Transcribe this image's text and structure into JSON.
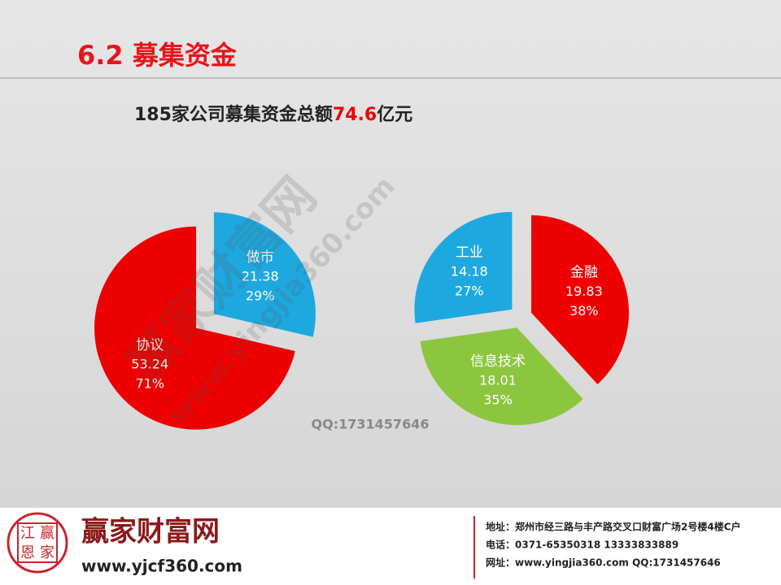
{
  "header": {
    "title": "6.2 募集资金",
    "subtitle_prefix": "185家公司募集资金总额",
    "subtitle_highlight": "74.6",
    "subtitle_suffix": "亿元"
  },
  "chart_data": [
    {
      "type": "pie",
      "categories": [
        "做市",
        "协议"
      ],
      "values": [
        21.38,
        53.24
      ],
      "share_labels": [
        "29%",
        "71%"
      ],
      "colors": [
        "#1ea8e0",
        "#ee0000"
      ]
    },
    {
      "type": "pie",
      "categories": [
        "金融",
        "信息技术",
        "工业"
      ],
      "values": [
        19.83,
        18.01,
        14.18
      ],
      "share_labels": [
        "38%",
        "35%",
        "27%"
      ],
      "colors": [
        "#ee0000",
        "#8cc63f",
        "#1ea8e0"
      ]
    }
  ],
  "annotation": "QQ:1731457646",
  "watermark": [
    "赢家财富网",
    "www.yingjia360.com"
  ],
  "footer": {
    "logo_chars": [
      "江",
      "赢",
      "恩",
      "家"
    ],
    "brand": "赢家财富网",
    "site": "www.yjcf360.com",
    "address": "地址：郑州市经三路与丰产路交叉口财富广场2号楼4楼C户",
    "phone": "电话：0371-65350318  13333833889",
    "web": "网址：www.yingjia360.com  QQ:1731457646"
  }
}
